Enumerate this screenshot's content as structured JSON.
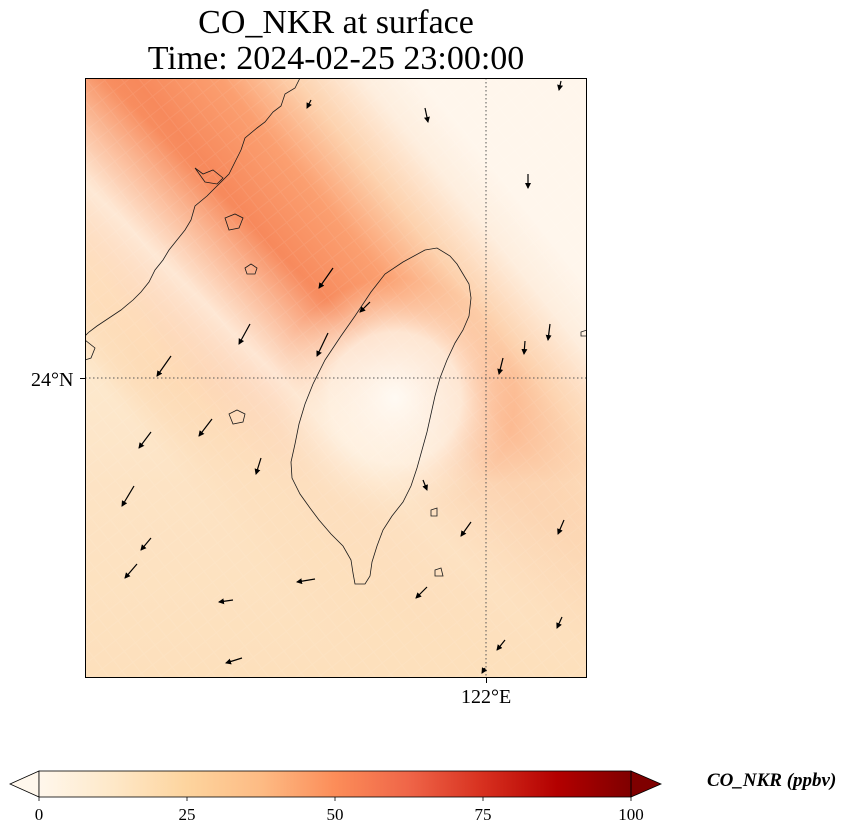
{
  "title": {
    "line1": "CO_NKR at surface",
    "line2": "Time: 2024-02-25 23:00:00"
  },
  "axes": {
    "lat_label": "24°N",
    "lon_label": "122°E"
  },
  "colorbar": {
    "title": "CO_NKR (ppbv)",
    "min": 0,
    "max": 100,
    "ticks": [
      "0",
      "25",
      "50",
      "75",
      "100"
    ],
    "colormap": "OrRd",
    "colors": [
      "#fff7ec",
      "#fee8c8",
      "#fdd49e",
      "#fdbb84",
      "#fc8d59",
      "#ef6548",
      "#d7301f",
      "#b30000",
      "#7f0000"
    ],
    "extend": "both"
  },
  "map": {
    "variable": "CO_NKR",
    "level": "surface",
    "gridlines": {
      "lat": "24°N",
      "lon": "122°E",
      "style": "dotted"
    },
    "wind_vectors": "shown"
  }
}
